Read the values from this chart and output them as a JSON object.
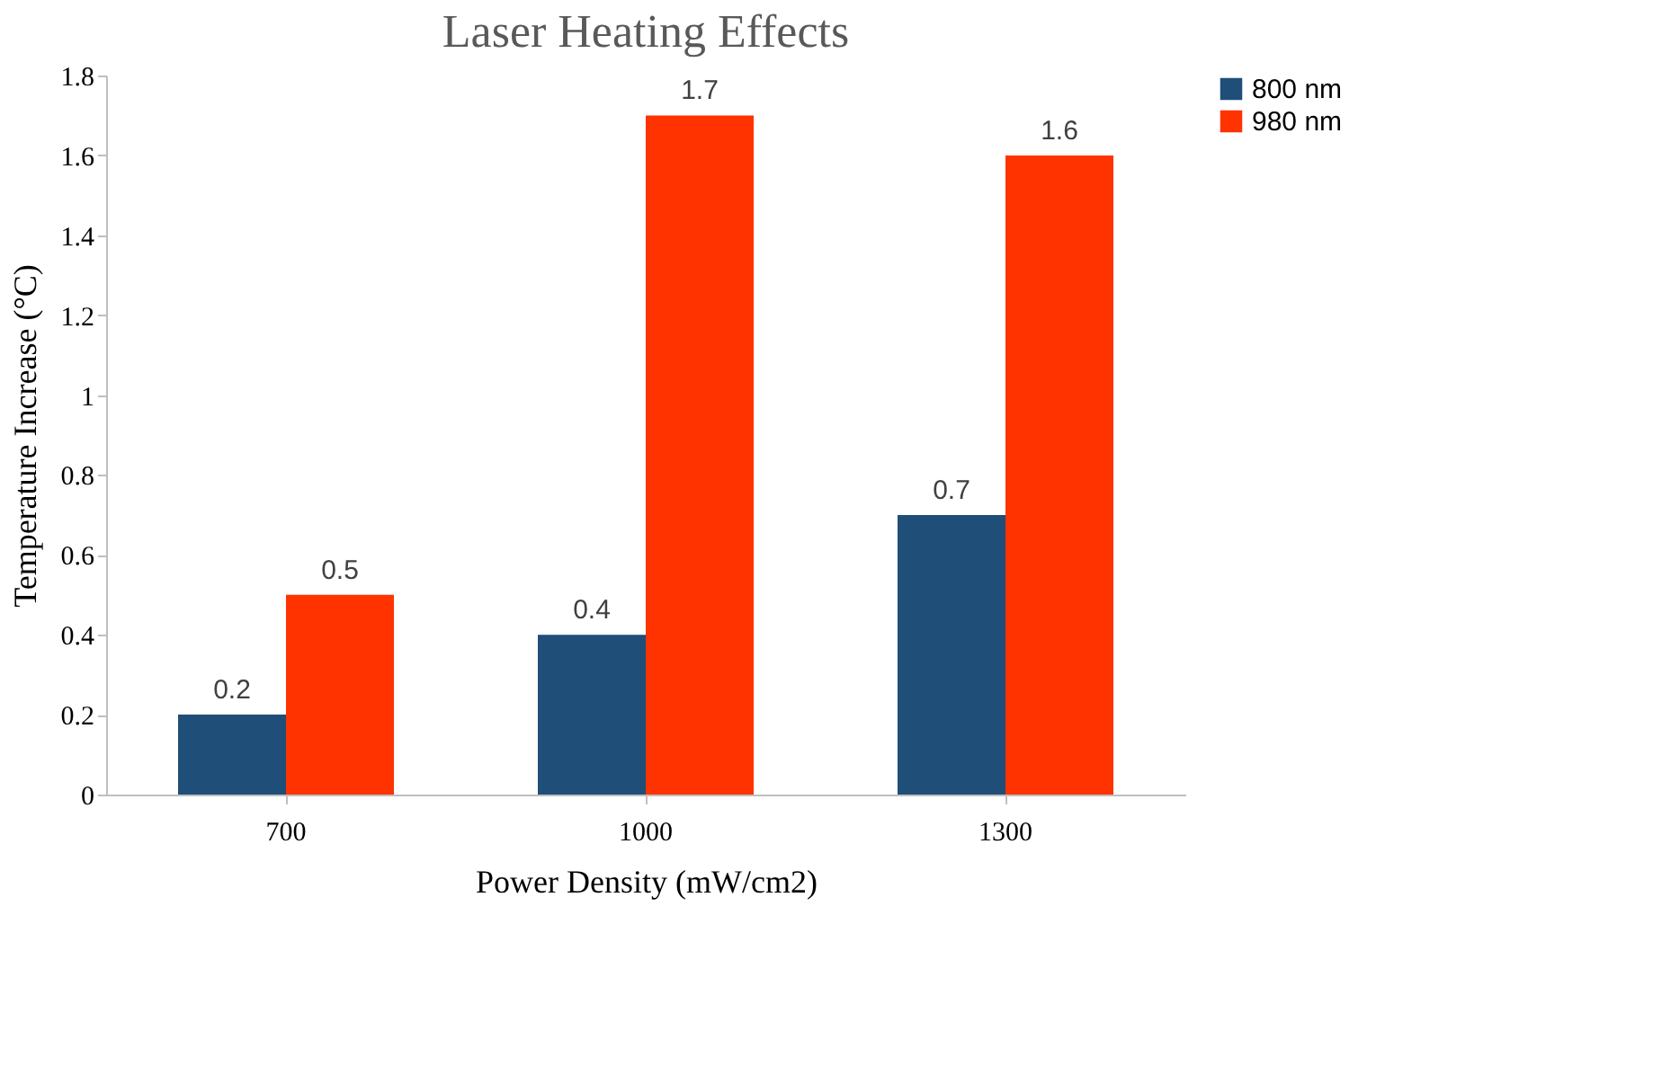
{
  "chart_data": {
    "type": "bar",
    "title": "Laser Heating Effects",
    "xlabel": "Power Density (mW/cm2)",
    "ylabel": "Temperature Increase (°C)",
    "categories": [
      "700",
      "1000",
      "1300"
    ],
    "series": [
      {
        "name": "800 nm",
        "color": "#1f4e79",
        "values": [
          0.2,
          0.4,
          0.7
        ]
      },
      {
        "name": "980 nm",
        "color": "#ff3300",
        "values": [
          0.5,
          1.7,
          1.6
        ]
      }
    ],
    "ylim": [
      0,
      1.8
    ],
    "yticks": [
      0,
      0.2,
      0.4,
      0.6,
      0.8,
      1,
      1.2,
      1.4,
      1.6,
      1.8
    ],
    "grid": false,
    "legend": "right",
    "data_labels": true
  }
}
